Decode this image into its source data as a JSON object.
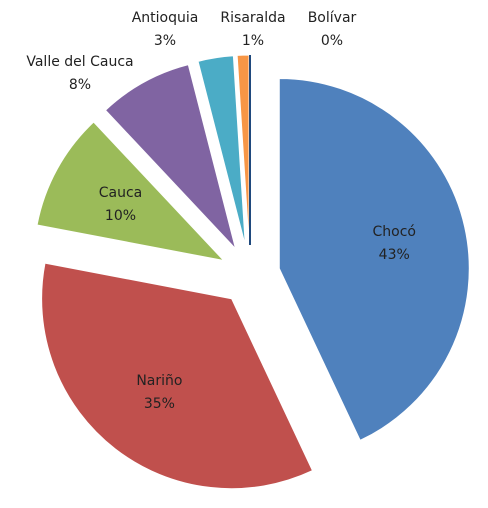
{
  "chart_data": {
    "type": "pie",
    "categories": [
      "Chocó",
      "Nariño",
      "Cauca",
      "Valle del Cauca",
      "Antioquia",
      "Risaralda",
      "Bolívar"
    ],
    "values": [
      43,
      35,
      10,
      8,
      3,
      1,
      0
    ],
    "value_labels": [
      "43%",
      "35%",
      "10%",
      "8%",
      "3%",
      "1%",
      "0%"
    ],
    "colors": [
      "#4f81bd",
      "#c0504d",
      "#9bbb59",
      "#8064a2",
      "#4bacc6",
      "#f79646",
      "#1f497d"
    ]
  }
}
